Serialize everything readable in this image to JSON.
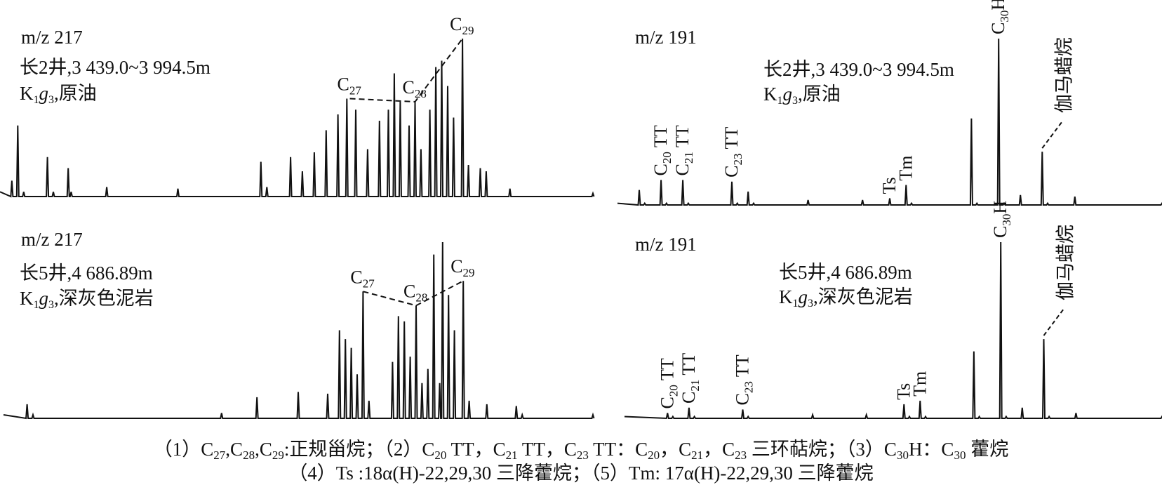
{
  "chart_data": [
    {
      "type": "line",
      "panel": "top-left",
      "ion": "m/z 217",
      "sample_lines": [
        "长2井,3 439.0~3 994.5m",
        "K₁g₃,原油"
      ],
      "peak_labels": [
        {
          "label": "C27",
          "x": 0.59,
          "y": 0.62
        },
        {
          "label": "C28",
          "x": 0.7,
          "y": 0.6
        },
        {
          "label": "C29",
          "x": 0.78,
          "y": 1.0
        }
      ],
      "trace": [
        [
          0,
          0.03
        ],
        [
          0.02,
          0.1
        ],
        [
          0.03,
          0.45
        ],
        [
          0.04,
          0.03
        ],
        [
          0.08,
          0.25
        ],
        [
          0.09,
          0.03
        ],
        [
          0.115,
          0.18
        ],
        [
          0.12,
          0.03
        ],
        [
          0.18,
          0.06
        ],
        [
          0.3,
          0.05
        ],
        [
          0.44,
          0.22
        ],
        [
          0.45,
          0.06
        ],
        [
          0.49,
          0.25
        ],
        [
          0.51,
          0.16
        ],
        [
          0.53,
          0.28
        ],
        [
          0.55,
          0.42
        ],
        [
          0.57,
          0.52
        ],
        [
          0.585,
          0.62
        ],
        [
          0.6,
          0.55
        ],
        [
          0.62,
          0.3
        ],
        [
          0.64,
          0.48
        ],
        [
          0.655,
          0.55
        ],
        [
          0.665,
          0.78
        ],
        [
          0.675,
          0.6
        ],
        [
          0.69,
          0.45
        ],
        [
          0.7,
          0.6
        ],
        [
          0.71,
          0.3
        ],
        [
          0.725,
          0.55
        ],
        [
          0.735,
          0.82
        ],
        [
          0.745,
          0.86
        ],
        [
          0.755,
          0.7
        ],
        [
          0.765,
          0.5
        ],
        [
          0.78,
          1.0
        ],
        [
          0.79,
          0.2
        ],
        [
          0.81,
          0.18
        ],
        [
          0.82,
          0.16
        ],
        [
          0.86,
          0.05
        ],
        [
          1.0,
          0.02
        ]
      ]
    },
    {
      "type": "line",
      "panel": "top-right",
      "ion": "m/z 191",
      "sample_lines": [
        "长2井,3 439.0~3 994.5m",
        "K₁g₃,原油"
      ],
      "peak_labels": [
        {
          "label": "C20 TT",
          "x": 0.08,
          "y": 0.15
        },
        {
          "label": "C21 TT",
          "x": 0.12,
          "y": 0.15
        },
        {
          "label": "C23 TT",
          "x": 0.21,
          "y": 0.14
        },
        {
          "label": "Ts",
          "x": 0.5,
          "y": 0.04
        },
        {
          "label": "Tm",
          "x": 0.53,
          "y": 0.12
        },
        {
          "label": "C30H",
          "x": 0.7,
          "y": 1.0
        },
        {
          "label": "伽马蜡烷",
          "x": 0.78,
          "y": 0.32
        }
      ],
      "trace": [
        [
          0,
          0.01
        ],
        [
          0.04,
          0.09
        ],
        [
          0.05,
          0.01
        ],
        [
          0.08,
          0.15
        ],
        [
          0.09,
          0.01
        ],
        [
          0.12,
          0.15
        ],
        [
          0.13,
          0.01
        ],
        [
          0.21,
          0.14
        ],
        [
          0.22,
          0.01
        ],
        [
          0.24,
          0.08
        ],
        [
          0.25,
          0.01
        ],
        [
          0.35,
          0.03
        ],
        [
          0.45,
          0.03
        ],
        [
          0.5,
          0.04
        ],
        [
          0.53,
          0.12
        ],
        [
          0.54,
          0.01
        ],
        [
          0.65,
          0.52
        ],
        [
          0.66,
          0.01
        ],
        [
          0.7,
          1.0
        ],
        [
          0.71,
          0.01
        ],
        [
          0.74,
          0.06
        ],
        [
          0.78,
          0.32
        ],
        [
          0.79,
          0.01
        ],
        [
          0.84,
          0.05
        ],
        [
          1.0,
          0.01
        ]
      ]
    },
    {
      "type": "line",
      "panel": "bottom-left",
      "ion": "m/z 217",
      "sample_lines": [
        "长5井,4 686.89m",
        "K₁g₃,深灰色泥岩"
      ],
      "peak_labels": [
        {
          "label": "C27",
          "x": 0.61,
          "y": 0.72
        },
        {
          "label": "C28",
          "x": 0.7,
          "y": 0.64
        },
        {
          "label": "C29",
          "x": 0.78,
          "y": 0.78
        }
      ],
      "trace": [
        [
          0,
          0.02
        ],
        [
          0.04,
          0.08
        ],
        [
          0.05,
          0.02
        ],
        [
          0.37,
          0.03
        ],
        [
          0.43,
          0.12
        ],
        [
          0.5,
          0.15
        ],
        [
          0.55,
          0.14
        ],
        [
          0.57,
          0.5
        ],
        [
          0.58,
          0.45
        ],
        [
          0.59,
          0.4
        ],
        [
          0.6,
          0.25
        ],
        [
          0.61,
          0.72
        ],
        [
          0.62,
          0.1
        ],
        [
          0.66,
          0.32
        ],
        [
          0.67,
          0.58
        ],
        [
          0.68,
          0.55
        ],
        [
          0.69,
          0.35
        ],
        [
          0.7,
          0.64
        ],
        [
          0.71,
          0.2
        ],
        [
          0.72,
          0.28
        ],
        [
          0.73,
          0.93
        ],
        [
          0.74,
          0.2
        ],
        [
          0.745,
          1.0
        ],
        [
          0.755,
          0.7
        ],
        [
          0.765,
          0.5
        ],
        [
          0.78,
          0.78
        ],
        [
          0.79,
          0.1
        ],
        [
          0.82,
          0.08
        ],
        [
          0.87,
          0.07
        ],
        [
          0.88,
          0.02
        ],
        [
          1.0,
          0.02
        ]
      ]
    },
    {
      "type": "line",
      "panel": "bottom-right",
      "ion": "m/z 191",
      "sample_lines": [
        "长5井,4 686.89m",
        "K₁g₃,深灰色泥岩"
      ],
      "peak_labels": [
        {
          "label": "C20 TT",
          "x": 0.08,
          "y": 0.03
        },
        {
          "label": "C21 TT",
          "x": 0.12,
          "y": 0.06
        },
        {
          "label": "C23 TT",
          "x": 0.22,
          "y": 0.05
        },
        {
          "label": "Ts",
          "x": 0.52,
          "y": 0.08
        },
        {
          "label": "Tm",
          "x": 0.55,
          "y": 0.1
        },
        {
          "label": "C30H",
          "x": 0.7,
          "y": 1.0
        },
        {
          "label": "伽马蜡烷",
          "x": 0.78,
          "y": 0.45
        }
      ],
      "trace": [
        [
          0,
          0.01
        ],
        [
          0.08,
          0.03
        ],
        [
          0.09,
          0.01
        ],
        [
          0.12,
          0.06
        ],
        [
          0.13,
          0.01
        ],
        [
          0.22,
          0.05
        ],
        [
          0.23,
          0.01
        ],
        [
          0.35,
          0.02
        ],
        [
          0.45,
          0.02
        ],
        [
          0.52,
          0.08
        ],
        [
          0.53,
          0.01
        ],
        [
          0.55,
          0.1
        ],
        [
          0.56,
          0.01
        ],
        [
          0.65,
          0.38
        ],
        [
          0.66,
          0.01
        ],
        [
          0.7,
          1.0
        ],
        [
          0.71,
          0.01
        ],
        [
          0.74,
          0.06
        ],
        [
          0.78,
          0.45
        ],
        [
          0.79,
          0.01
        ],
        [
          0.84,
          0.03
        ],
        [
          1.0,
          0.01
        ]
      ]
    }
  ],
  "caption": {
    "line1": "（1）C27,C28,C29:正规甾烷；（2）C20 TT，C21 TT，C23 TT：C20，C21，C23 三环萜烷；（3）C30H：C30 藿烷",
    "line2": "（4）Ts :18α(H)-22,29,30 三降藿烷；（5）Tm: 17α(H)-22,29,30 三降藿烷"
  }
}
